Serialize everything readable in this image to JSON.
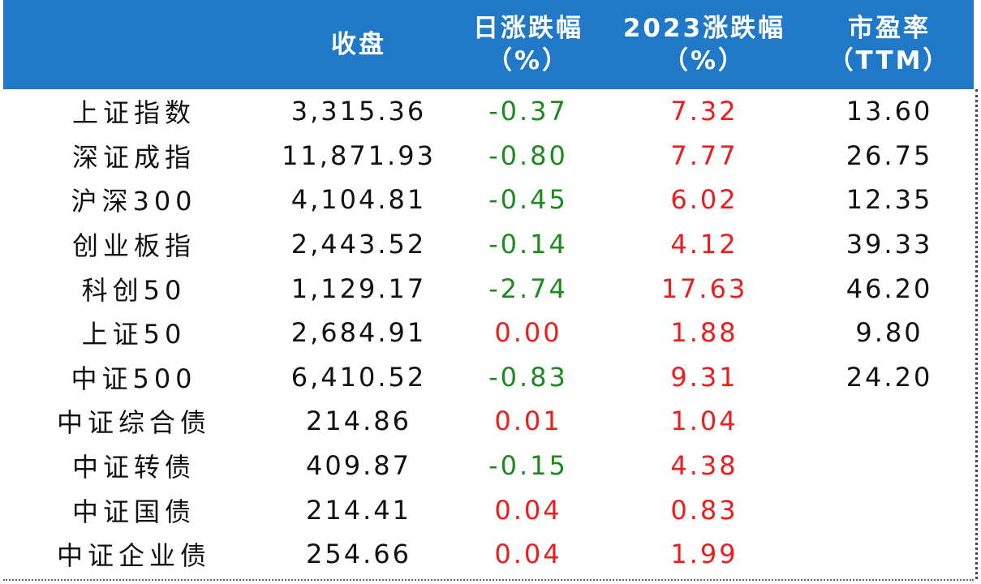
{
  "table": {
    "headers": [
      {
        "l1": "",
        "l2": ""
      },
      {
        "l1": "收盘",
        "l2": ""
      },
      {
        "l1": "日涨跌幅",
        "l2": "（%）"
      },
      {
        "l1": "2023涨跌幅",
        "l2": "（%）"
      },
      {
        "l1": "市盈率",
        "l2": "（TTM）"
      }
    ],
    "rows": [
      {
        "name": "上证指数",
        "close": "3,315.36",
        "daily": "-0.37",
        "ytd": "7.32",
        "pe": "13.60"
      },
      {
        "name": "深证成指",
        "close": "11,871.93",
        "daily": "-0.80",
        "ytd": "7.77",
        "pe": "26.75"
      },
      {
        "name": "沪深300",
        "close": "4,104.81",
        "daily": "-0.45",
        "ytd": "6.02",
        "pe": "12.35"
      },
      {
        "name": "创业板指",
        "close": "2,443.52",
        "daily": "-0.14",
        "ytd": "4.12",
        "pe": "39.33"
      },
      {
        "name": "科创50",
        "close": "1,129.17",
        "daily": "-2.74",
        "ytd": "17.63",
        "pe": "46.20"
      },
      {
        "name": "上证50",
        "close": "2,684.91",
        "daily": "0.00",
        "ytd": "1.88",
        "pe": "9.80"
      },
      {
        "name": "中证500",
        "close": "6,410.52",
        "daily": "-0.83",
        "ytd": "9.31",
        "pe": "24.20"
      },
      {
        "name": "中证综合债",
        "close": "214.86",
        "daily": "0.01",
        "ytd": "1.04",
        "pe": ""
      },
      {
        "name": "中证转债",
        "close": "409.87",
        "daily": "-0.15",
        "ytd": "4.38",
        "pe": ""
      },
      {
        "name": "中证国债",
        "close": "214.41",
        "daily": "0.04",
        "ytd": "0.83",
        "pe": ""
      },
      {
        "name": "中证企业债",
        "close": "254.66",
        "daily": "0.04",
        "ytd": "1.99",
        "pe": ""
      }
    ]
  },
  "colors": {
    "header_bg": "#1f78c8",
    "header_text": "#ffffff",
    "positive": "#ee1c1c",
    "negative": "#1e8a1e",
    "text": "#111111"
  }
}
